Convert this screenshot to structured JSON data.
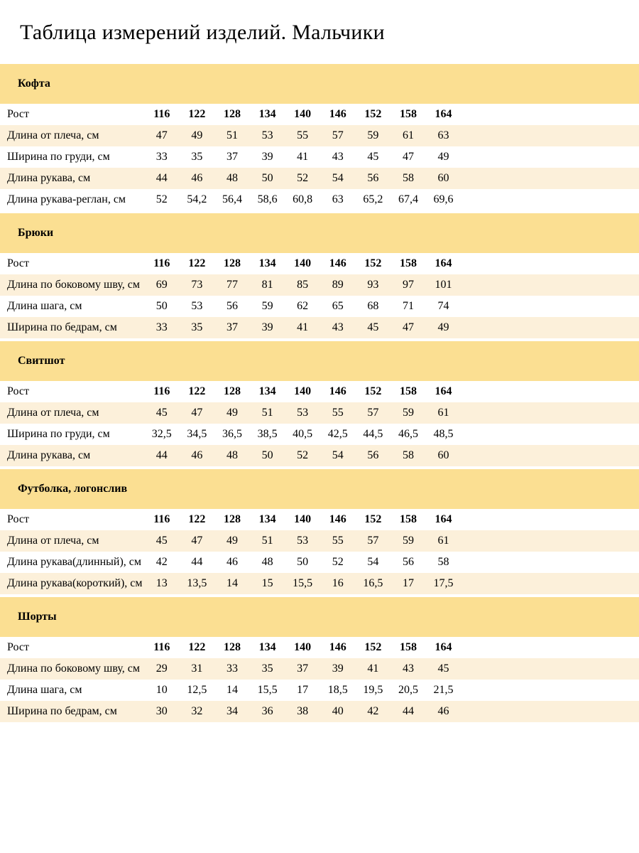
{
  "page": {
    "title": "Таблица измерений изделий. Мальчики"
  },
  "colors": {
    "section_band": "#fbdf92",
    "row_alt": "#fcf0da",
    "background": "#ffffff",
    "text": "#000000"
  },
  "table": {
    "height_label": "Рост",
    "columns": [
      "116",
      "122",
      "128",
      "134",
      "140",
      "146",
      "152",
      "158",
      "164"
    ],
    "sections": [
      {
        "name": "Кофта",
        "rows": [
          {
            "label": "Длина от плеча, см",
            "values": [
              "47",
              "49",
              "51",
              "53",
              "55",
              "57",
              "59",
              "61",
              "63"
            ]
          },
          {
            "label": "Ширина по груди, см",
            "values": [
              "33",
              "35",
              "37",
              "39",
              "41",
              "43",
              "45",
              "47",
              "49"
            ]
          },
          {
            "label": "Длина рукава, см",
            "values": [
              "44",
              "46",
              "48",
              "50",
              "52",
              "54",
              "56",
              "58",
              "60"
            ]
          },
          {
            "label": "Длина рукава-реглан, см",
            "values": [
              "52",
              "54,2",
              "56,4",
              "58,6",
              "60,8",
              "63",
              "65,2",
              "67,4",
              "69,6"
            ]
          }
        ]
      },
      {
        "name": "Брюки",
        "rows": [
          {
            "label": "Длина по боковому шву, см",
            "values": [
              "69",
              "73",
              "77",
              "81",
              "85",
              "89",
              "93",
              "97",
              "101"
            ]
          },
          {
            "label": "Длина шага, см",
            "values": [
              "50",
              "53",
              "56",
              "59",
              "62",
              "65",
              "68",
              "71",
              "74"
            ]
          },
          {
            "label": "Ширина по бедрам, см",
            "values": [
              "33",
              "35",
              "37",
              "39",
              "41",
              "43",
              "45",
              "47",
              "49"
            ]
          }
        ]
      },
      {
        "name": "Свитшот",
        "rows": [
          {
            "label": "Длина от плеча, см",
            "values": [
              "45",
              "47",
              "49",
              "51",
              "53",
              "55",
              "57",
              "59",
              "61"
            ]
          },
          {
            "label": "Ширина по груди, см",
            "values": [
              "32,5",
              "34,5",
              "36,5",
              "38,5",
              "40,5",
              "42,5",
              "44,5",
              "46,5",
              "48,5"
            ]
          },
          {
            "label": "Длина рукава, см",
            "values": [
              "44",
              "46",
              "48",
              "50",
              "52",
              "54",
              "56",
              "58",
              "60"
            ]
          }
        ]
      },
      {
        "name": "Футболка, логонслив",
        "rows": [
          {
            "label": "Длина от плеча, см",
            "values": [
              "45",
              "47",
              "49",
              "51",
              "53",
              "55",
              "57",
              "59",
              "61"
            ]
          },
          {
            "label": "Длина рукава(длинный), см",
            "values": [
              "42",
              "44",
              "46",
              "48",
              "50",
              "52",
              "54",
              "56",
              "58"
            ]
          },
          {
            "label": "Длина рукава(короткий), см",
            "values": [
              "13",
              "13,5",
              "14",
              "15",
              "15,5",
              "16",
              "16,5",
              "17",
              "17,5"
            ]
          }
        ]
      },
      {
        "name": "Шорты",
        "rows": [
          {
            "label": "Длина по боковому шву, см",
            "values": [
              "29",
              "31",
              "33",
              "35",
              "37",
              "39",
              "41",
              "43",
              "45"
            ]
          },
          {
            "label": "Длина шага, см",
            "values": [
              "10",
              "12,5",
              "14",
              "15,5",
              "17",
              "18,5",
              "19,5",
              "20,5",
              "21,5"
            ]
          },
          {
            "label": "Ширина по бедрам, см",
            "values": [
              "30",
              "32",
              "34",
              "36",
              "38",
              "40",
              "42",
              "44",
              "46"
            ]
          }
        ]
      }
    ]
  }
}
